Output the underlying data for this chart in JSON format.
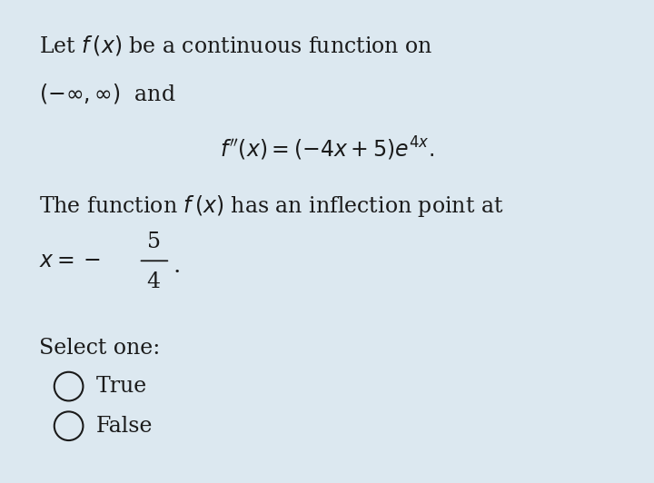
{
  "background_color": "#dce8f0",
  "text_color": "#1a1a1a",
  "body_font_size": 17,
  "line1": "Let $f\\,(x)$ be a continuous function on",
  "line2": "$(-\\infty, \\infty)$  and",
  "formula": "$f''(x) = (-4x + 5)e^{4x}.$",
  "line3": "The function $f\\,(x)$ has an inflection point at",
  "fraction_num": "5",
  "fraction_den": "4",
  "x_label": "$x = -$",
  "select_label": "Select one:",
  "option1": "True",
  "option2": "False",
  "circle_color": "#1a1a1a",
  "fig_width": 7.2,
  "fig_height": 5.32
}
